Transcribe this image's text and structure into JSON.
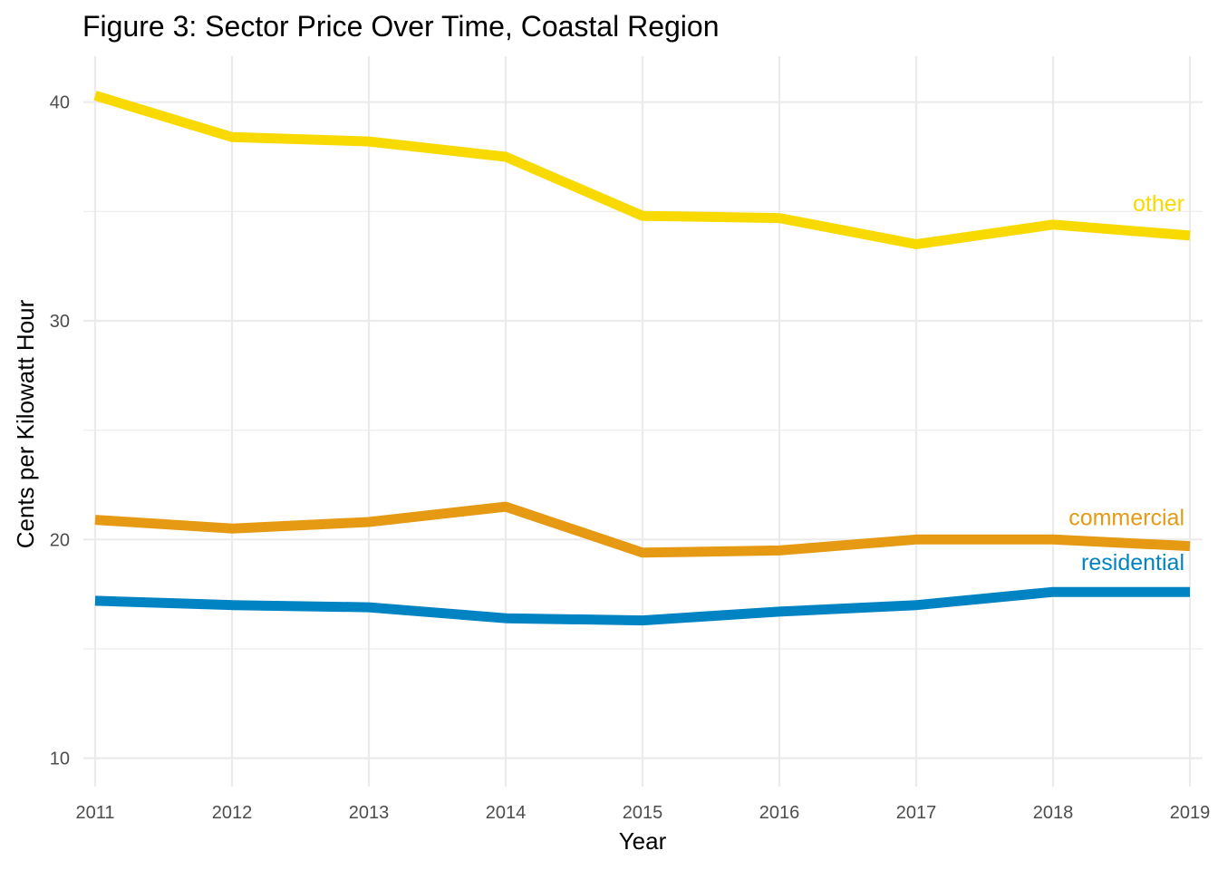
{
  "chart_data": {
    "type": "line",
    "title": "Figure 3: Sector Price Over Time, Coastal Region",
    "xlabel": "Year",
    "ylabel": "Cents per Kilowatt Hour",
    "x": [
      2011,
      2012,
      2013,
      2014,
      2015,
      2016,
      2017,
      2018,
      2019
    ],
    "xtick_labels": [
      "2011",
      "2012",
      "2013",
      "2014",
      "2015",
      "2016",
      "2017",
      "2018",
      "2019"
    ],
    "ytick_labels": [
      "10",
      "20",
      "30",
      "40"
    ],
    "ytick_values": [
      10,
      20,
      30,
      40
    ],
    "xlim": [
      2011,
      2019
    ],
    "ylim": [
      8.7,
      42.1
    ],
    "grid": true,
    "legend": "direct labels at line ends",
    "series": [
      {
        "name": "other",
        "color": "#F9DA00",
        "values": [
          40.3,
          38.4,
          38.2,
          37.5,
          34.8,
          34.7,
          33.5,
          34.4,
          33.9
        ]
      },
      {
        "name": "commercial",
        "color": "#E69A14",
        "values": [
          20.9,
          20.5,
          20.8,
          21.5,
          19.4,
          19.5,
          20.0,
          20.0,
          19.7
        ]
      },
      {
        "name": "residential",
        "color": "#0083C3",
        "values": [
          17.2,
          17.0,
          16.9,
          16.4,
          16.3,
          16.7,
          17.0,
          17.6,
          17.6
        ]
      }
    ]
  }
}
